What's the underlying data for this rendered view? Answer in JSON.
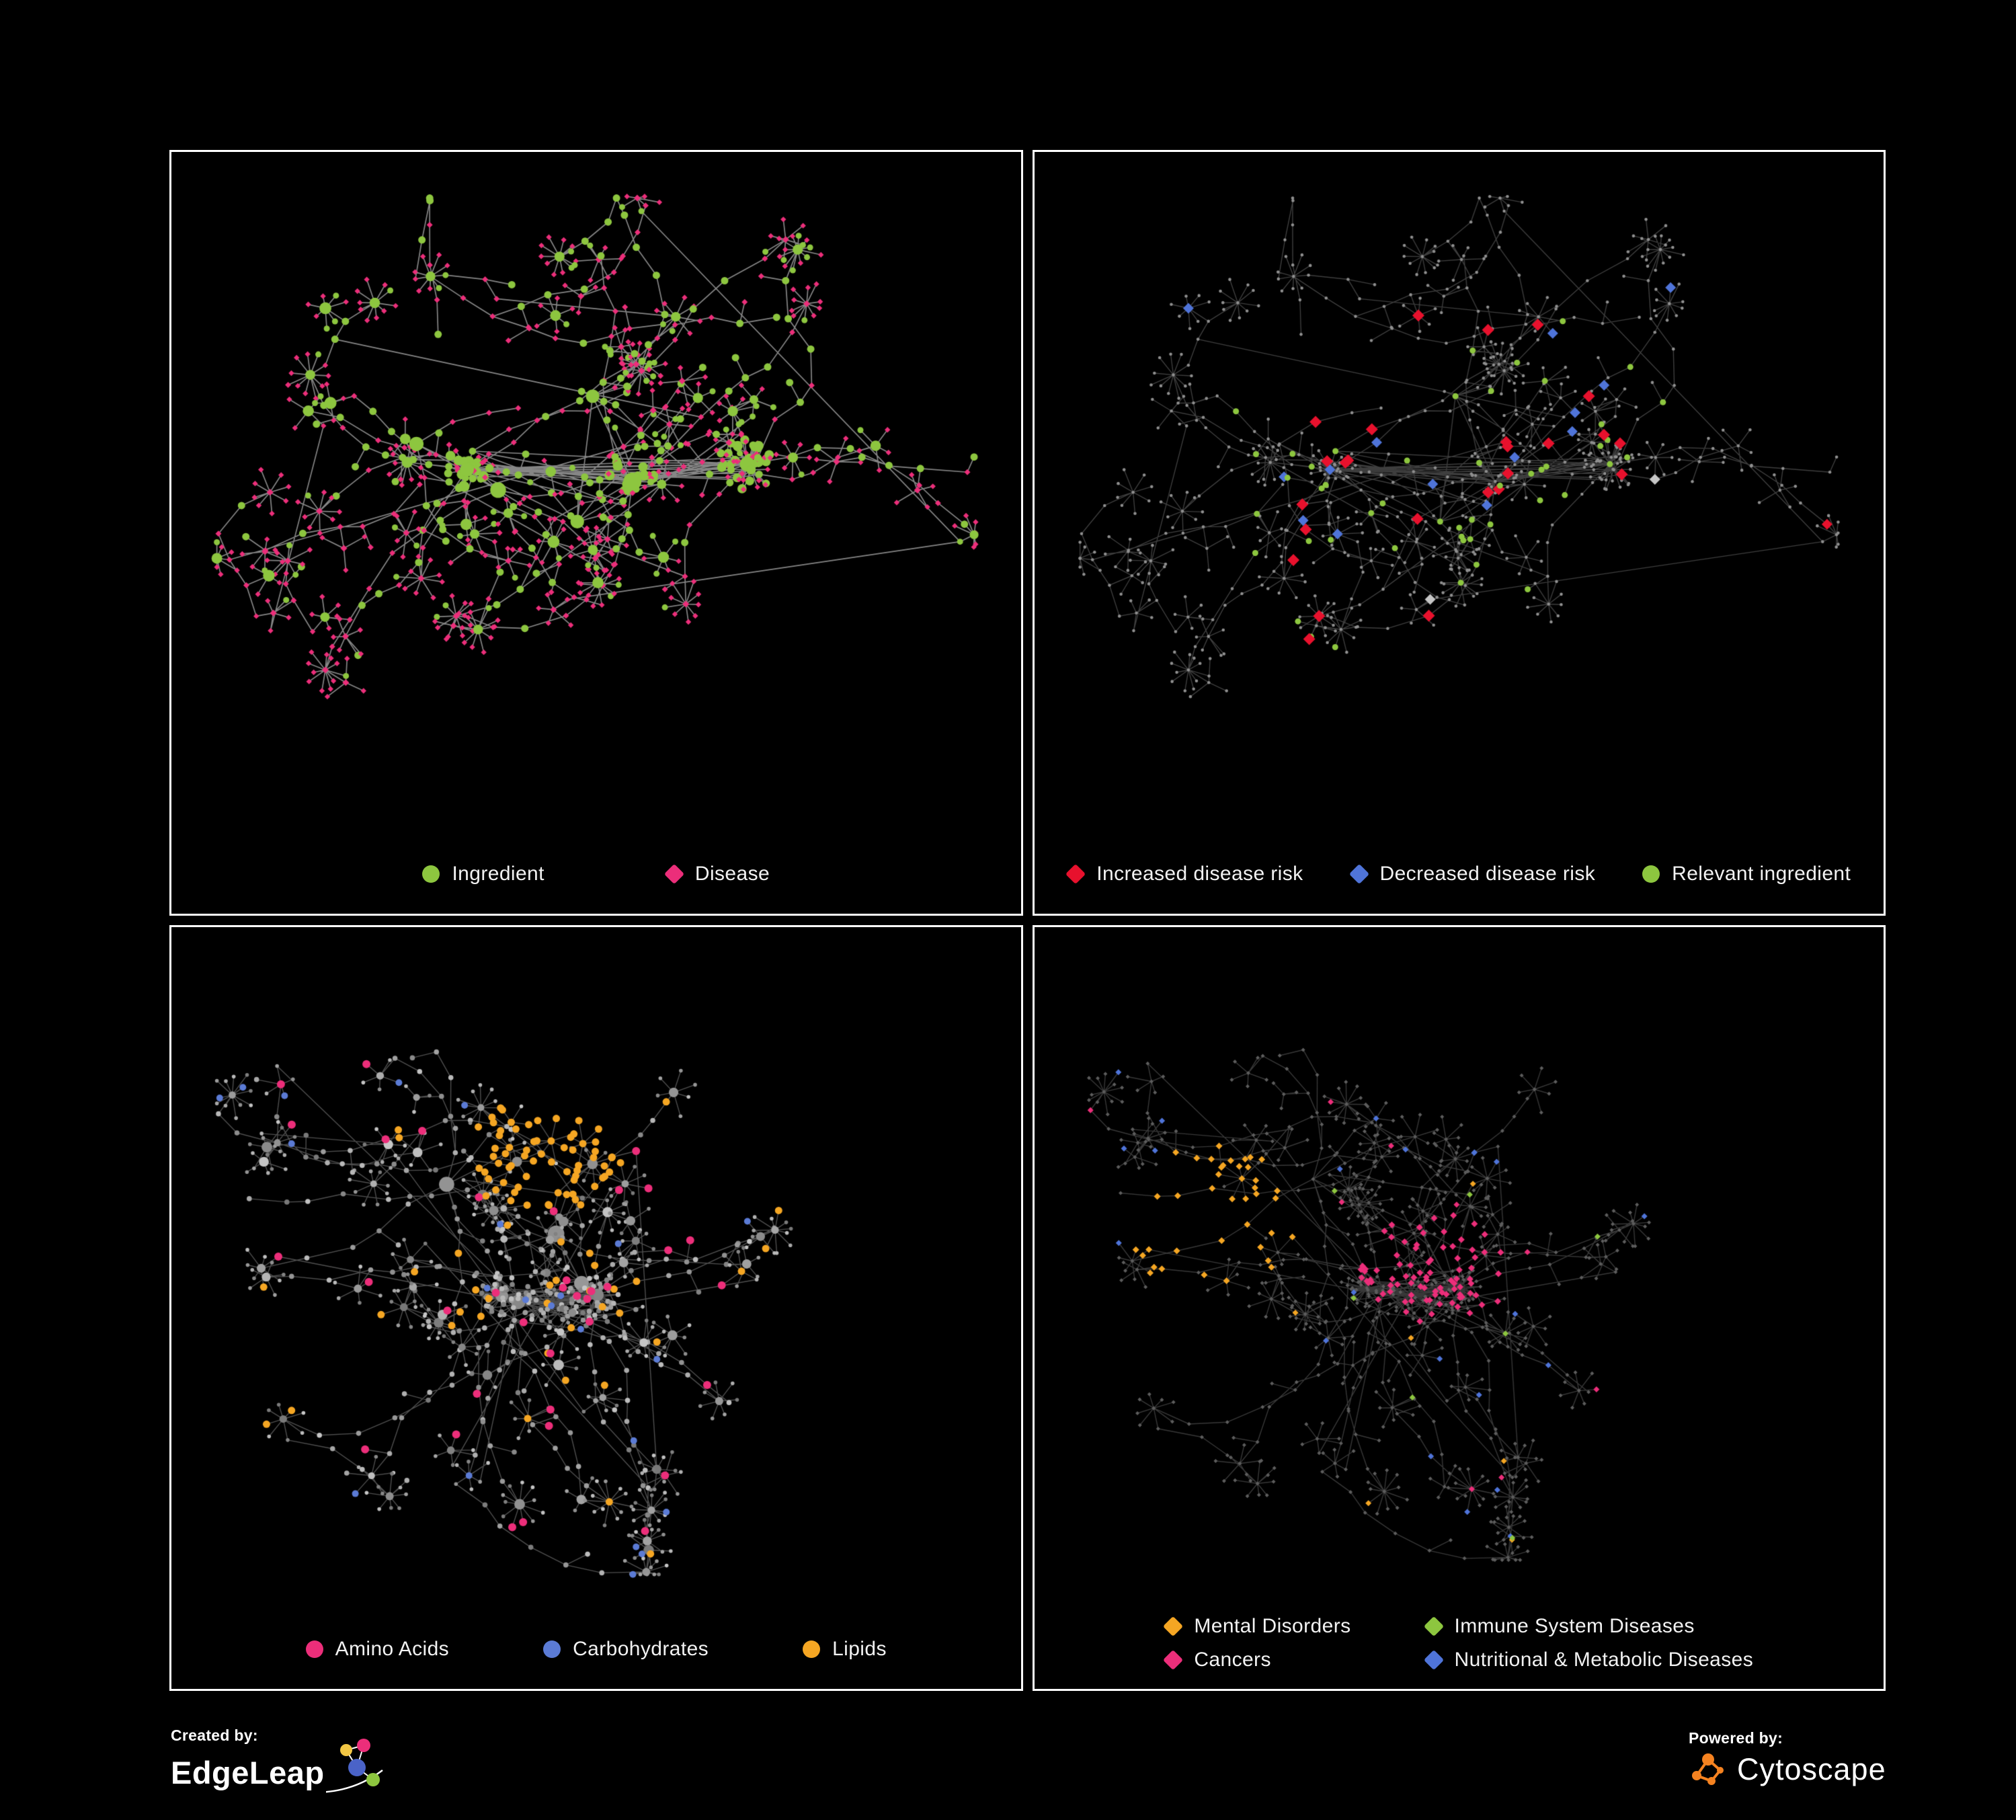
{
  "app": {
    "background": "#000000"
  },
  "panels": [
    {
      "name": "ingredient-disease-network",
      "legend": [
        {
          "label": "Ingredient",
          "shape": "circle",
          "color": "#8dc63f"
        },
        {
          "label": "Disease",
          "shape": "diamond",
          "color": "#ec2e7a"
        }
      ],
      "network": {
        "seed": 7,
        "style": "bipartite",
        "edge_alpha": 0.8
      },
      "palette": {
        "ingredient": "#8dc63f",
        "disease": "#ec2e7a",
        "edge": "#a8a8a8"
      }
    },
    {
      "name": "disease-risk-network",
      "legend": [
        {
          "label": "Increased disease risk",
          "shape": "diamond",
          "color": "#e8112d"
        },
        {
          "label": "Decreased disease risk",
          "shape": "diamond",
          "color": "#4f74d9"
        },
        {
          "label": "Relevant ingredient",
          "shape": "circle",
          "color": "#8dc63f"
        }
      ],
      "network": {
        "seed": 7,
        "style": "risk",
        "edge_alpha": 0.45
      },
      "palette": {
        "base": "#8f8f8f",
        "edge": "#8a8a8a",
        "increased": "#e8112d",
        "decreased": "#4f74d9",
        "neutral": "#c6c6c6",
        "ingredient": "#8dc63f"
      }
    },
    {
      "name": "nutrient-class-network",
      "legend": [
        {
          "label": "Amino Acids",
          "shape": "circle",
          "color": "#ec2e7a"
        },
        {
          "label": "Carbohydrates",
          "shape": "circle",
          "color": "#5b7bd5"
        },
        {
          "label": "Lipids",
          "shape": "circle",
          "color": "#f5a623"
        }
      ],
      "network": {
        "seed": 29,
        "style": "nutrients",
        "edge_alpha": 0.55
      },
      "palette": {
        "base": "#9a9a9a",
        "edge": "#8f8f8f",
        "amino": "#ec2e7a",
        "carb": "#5b7bd5",
        "lipid": "#f5a623"
      }
    },
    {
      "name": "disease-class-network",
      "legend": [
        {
          "label": "Mental Disorders",
          "shape": "diamond",
          "color": "#f5a623"
        },
        {
          "label": "Immune System Diseases",
          "shape": "diamond",
          "color": "#8dc63f"
        },
        {
          "label": "Cancers",
          "shape": "diamond",
          "color": "#ec2e7a"
        },
        {
          "label": "Nutritional & Metabolic Diseases",
          "shape": "diamond",
          "color": "#4f74d9"
        }
      ],
      "network": {
        "seed": 29,
        "style": "diseases",
        "edge_alpha": 0.45
      },
      "palette": {
        "base": "#5d5d5d",
        "edge": "#7d7d7d",
        "mental": "#f5a623",
        "immune": "#8dc63f",
        "cancer": "#ec2e7a",
        "nutritional": "#4f74d9"
      }
    }
  ],
  "footer": {
    "created_by_label": "Created by:",
    "created_by_name": "EdgeLeap",
    "powered_by_label": "Powered by:",
    "powered_by_name": "Cytoscape"
  }
}
